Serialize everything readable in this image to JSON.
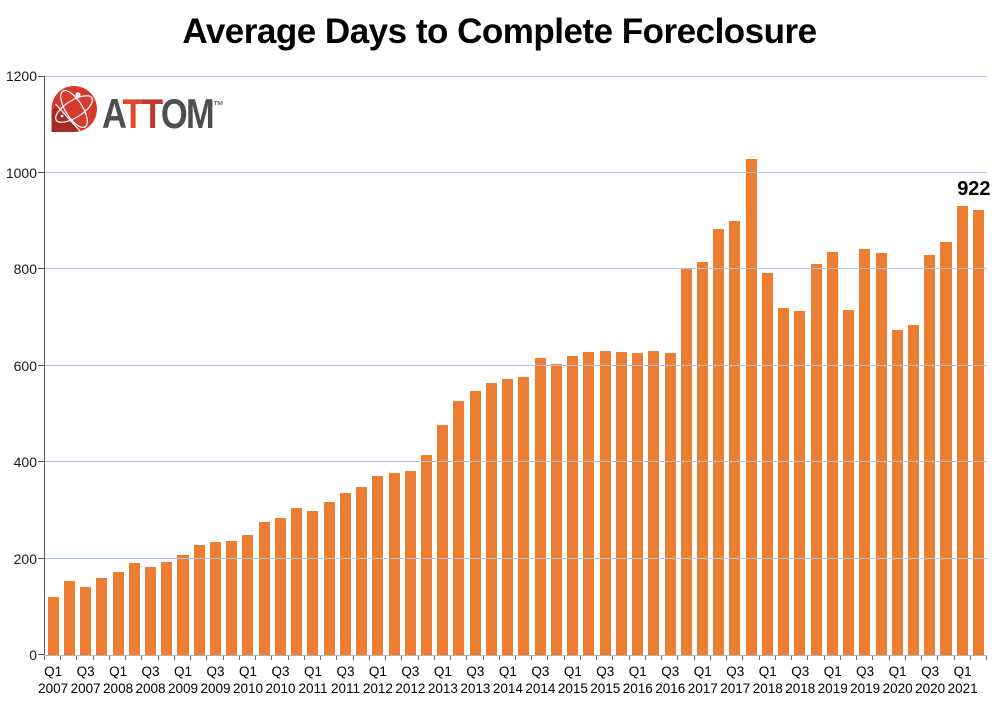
{
  "title": "Average Days to Complete Foreclosure",
  "logo": {
    "letters": [
      {
        "char": "A",
        "color": "#4D4E50"
      },
      {
        "char": "T",
        "color": "#E2492F"
      },
      {
        "char": "T",
        "color": "#C0392E"
      },
      {
        "char": "O",
        "color": "#4D4E50"
      },
      {
        "char": "M",
        "color": "#4D4E50"
      }
    ],
    "trademark": "™",
    "icon": "attom-globe-icon",
    "icon_colors": {
      "globe": "#D7392F",
      "wedge": "#A82A24",
      "lines": "#ffffff"
    }
  },
  "colors": {
    "bar": "#ED7D31",
    "gridline": "#AFC2E8",
    "y_axis_line": "#595959",
    "x_axis_line": "#B3B3B3",
    "tick": "#6b6b6b",
    "text": "#000000"
  },
  "chart_data": {
    "type": "bar",
    "title": "Average Days to Complete Foreclosure",
    "x": [
      "Q1 2007",
      "Q2 2007",
      "Q3 2007",
      "Q4 2007",
      "Q1 2008",
      "Q2 2008",
      "Q3 2008",
      "Q4 2008",
      "Q1 2009",
      "Q2 2009",
      "Q3 2009",
      "Q4 2009",
      "Q1 2010",
      "Q2 2010",
      "Q3 2010",
      "Q4 2010",
      "Q1 2011",
      "Q2 2011",
      "Q3 2011",
      "Q4 2011",
      "Q1 2012",
      "Q2 2012",
      "Q3 2012",
      "Q4 2012",
      "Q1 2013",
      "Q2 2013",
      "Q3 2013",
      "Q4 2013",
      "Q1 2014",
      "Q2 2014",
      "Q3 2014",
      "Q4 2014",
      "Q1 2015",
      "Q2 2015",
      "Q3 2015",
      "Q4 2015",
      "Q1 2016",
      "Q2 2016",
      "Q3 2016",
      "Q4 2016",
      "Q1 2017",
      "Q2 2017",
      "Q3 2017",
      "Q4 2017",
      "Q1 2018",
      "Q2 2018",
      "Q3 2018",
      "Q4 2018",
      "Q1 2019",
      "Q2 2019",
      "Q3 2019",
      "Q4 2019",
      "Q1 2020",
      "Q2 2020",
      "Q3 2020",
      "Q4 2020",
      "Q1 2021",
      "Q2 2021"
    ],
    "values": [
      120,
      153,
      140,
      159,
      173,
      191,
      183,
      193,
      207,
      229,
      235,
      237,
      248,
      275,
      283,
      305,
      298,
      318,
      336,
      348,
      370,
      378,
      382,
      414,
      477,
      526,
      547,
      564,
      572,
      577,
      615,
      604,
      620,
      629,
      630,
      629,
      625,
      631,
      625,
      803,
      814,
      883,
      899,
      1027,
      791,
      720,
      713,
      811,
      835,
      716,
      841,
      834,
      673,
      685,
      830,
      857,
      930,
      922
    ],
    "ylim": [
      0,
      1200
    ],
    "yticks": [
      0,
      200,
      400,
      600,
      800,
      1000,
      1200
    ],
    "xtick_label_step": 2,
    "grid": "horizontal",
    "legend": "none",
    "bar_color": "#ED7D31",
    "annotation": {
      "label": "922",
      "bar_index": 57
    }
  }
}
